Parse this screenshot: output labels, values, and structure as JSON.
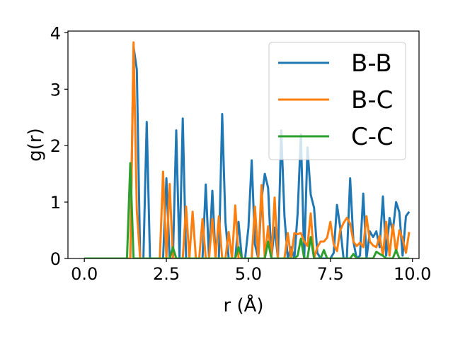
{
  "chart_data": {
    "type": "line",
    "xlabel": "r (Å)",
    "ylabel": "g(r)",
    "xlim": [
      -0.5,
      10.2
    ],
    "ylim": [
      0,
      4.03
    ],
    "xticks": [
      "0.0",
      "2.5",
      "5.0",
      "7.5",
      "10.0"
    ],
    "xtick_values": [
      0,
      2.5,
      5,
      7.5,
      10
    ],
    "yticks": [
      "0",
      "1",
      "2",
      "3",
      "4"
    ],
    "ytick_values": [
      0,
      1,
      2,
      3,
      4
    ],
    "grid": false,
    "legend_position": "top-right",
    "x": [
      0.0,
      0.1,
      0.2,
      0.3,
      0.4,
      0.5,
      0.6,
      0.7,
      0.8,
      0.9,
      1.0,
      1.1,
      1.2,
      1.3,
      1.4,
      1.5,
      1.6,
      1.7,
      1.8,
      1.9,
      2.0,
      2.1,
      2.2,
      2.3,
      2.4,
      2.5,
      2.6,
      2.7,
      2.8,
      2.9,
      3.0,
      3.1,
      3.2,
      3.3,
      3.4,
      3.5,
      3.6,
      3.7,
      3.8,
      3.9,
      4.0,
      4.1,
      4.2,
      4.3,
      4.4,
      4.5,
      4.6,
      4.7,
      4.8,
      4.9,
      5.0,
      5.1,
      5.2,
      5.3,
      5.4,
      5.5,
      5.6,
      5.7,
      5.8,
      5.9,
      6.0,
      6.1,
      6.2,
      6.3,
      6.4,
      6.5,
      6.6,
      6.7,
      6.8,
      6.9,
      7.0,
      7.1,
      7.2,
      7.3,
      7.4,
      7.5,
      7.6,
      7.7,
      7.8,
      7.9,
      8.0,
      8.1,
      8.2,
      8.3,
      8.4,
      8.5,
      8.6,
      8.7,
      8.8,
      8.9,
      9.0,
      9.1,
      9.2,
      9.3,
      9.4,
      9.5,
      9.6,
      9.7,
      9.8,
      9.9
    ],
    "series": [
      {
        "name": "B-B",
        "color": "#1f77b4",
        "values": [
          0,
          0,
          0,
          0,
          0,
          0,
          0,
          0,
          0,
          0,
          0,
          0,
          0,
          0,
          0,
          3.75,
          3.35,
          0,
          0,
          2.42,
          0,
          0,
          0,
          0,
          0,
          1.42,
          0,
          0,
          2.27,
          0,
          2.48,
          0,
          0,
          0,
          0,
          0,
          0,
          1.31,
          0,
          1.2,
          0,
          0,
          2.56,
          0.65,
          0,
          0,
          0,
          0.65,
          0,
          0,
          0.55,
          1.74,
          0.25,
          0,
          1.05,
          1.5,
          1.25,
          0,
          0.55,
          0,
          2.27,
          0.75,
          0,
          0.2,
          0,
          0.8,
          2.2,
          0,
          1.97,
          1.13,
          0.9,
          0.1,
          0,
          0,
          0,
          0,
          0.1,
          0.95,
          0.55,
          0,
          0,
          1.42,
          0.3,
          0,
          0.05,
          1.15,
          0,
          0.48,
          0.38,
          0.48,
          0.2,
          1.1,
          0.05,
          0.72,
          0.48,
          1.0,
          0.82,
          0.05,
          0.75,
          0.83
        ]
      },
      {
        "name": "B-C",
        "color": "#ff7f0e",
        "values": [
          0,
          0,
          0,
          0,
          0,
          0,
          0,
          0,
          0,
          0,
          0,
          0,
          0,
          0,
          0,
          3.83,
          0.85,
          0,
          0,
          0,
          0,
          0,
          0,
          0,
          1.54,
          0,
          1.32,
          0,
          0,
          0,
          0,
          0.92,
          0,
          0.83,
          0,
          0,
          0.7,
          0,
          0,
          0.7,
          0,
          0.75,
          0,
          0,
          0.47,
          0,
          0.94,
          0,
          0,
          0,
          0,
          0,
          0.92,
          0,
          1.3,
          0,
          0.57,
          0,
          1.08,
          0,
          0,
          0,
          0.45,
          0,
          0.45,
          0.43,
          0.45,
          0.3,
          0.22,
          0.8,
          0,
          0.2,
          0.3,
          0.3,
          0.37,
          0.65,
          0.25,
          0.13,
          0.5,
          0.63,
          0.72,
          0.62,
          0.3,
          0.22,
          0.28,
          0.2,
          0.75,
          0.3,
          0.23,
          0.2,
          0.4,
          0.05,
          0.65,
          0.05,
          0.6,
          0.1,
          0.5,
          0.35,
          0.1,
          0.47
        ]
      },
      {
        "name": "C-C",
        "color": "#2ca02c",
        "values": [
          0,
          0,
          0,
          0,
          0,
          0,
          0,
          0,
          0,
          0,
          0,
          0,
          0,
          0,
          1.69,
          0,
          0,
          0,
          0,
          0,
          0,
          0,
          0,
          0,
          0,
          0,
          0,
          0.2,
          0,
          0,
          0,
          0,
          0,
          0,
          0,
          0,
          0,
          0,
          0,
          0,
          0,
          0,
          0,
          0,
          0,
          0,
          0,
          0.2,
          0,
          0,
          0,
          0,
          0,
          0,
          0,
          0,
          0.3,
          0,
          0,
          0,
          0,
          0,
          0,
          0,
          0,
          0.05,
          0.35,
          0,
          0,
          0.38,
          0,
          0,
          0,
          0.15,
          0,
          0,
          0,
          0,
          0,
          0,
          0,
          0,
          0.08,
          0,
          0,
          0,
          0,
          0,
          0,
          0.12,
          0.08,
          0.05,
          0,
          0,
          0,
          0.15,
          0,
          0,
          0,
          0
        ]
      }
    ]
  }
}
